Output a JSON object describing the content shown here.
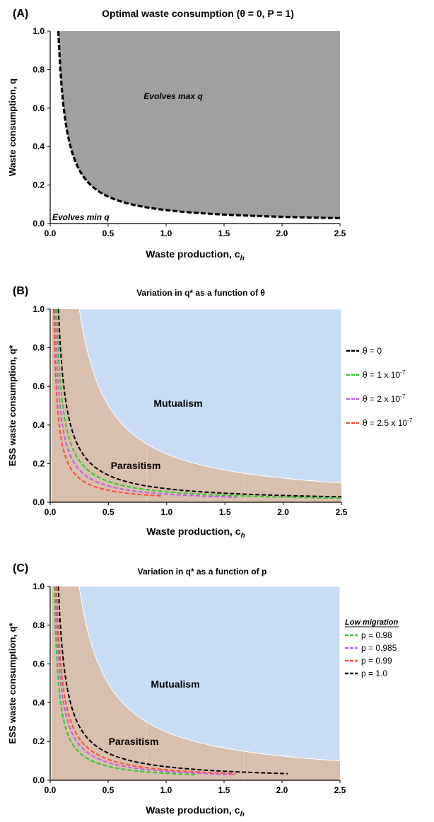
{
  "chart_data": [
    {
      "panel_label": "(A)",
      "type": "area",
      "title": "Optimal waste consumption (θ = 0, P = 1)",
      "xlabel": "Waste production, c",
      "xlabel_sub": "h",
      "ylabel": "Waste consumption, q",
      "xlim": [
        0,
        2.5
      ],
      "ylim": [
        0,
        1.0
      ],
      "xticks": [
        "0.0",
        "0.5",
        "1.0",
        "1.5",
        "2.0",
        "2.5"
      ],
      "yticks": [
        "0.0",
        "0.2",
        "0.4",
        "0.6",
        "0.8",
        "1.0"
      ],
      "region_labels": [
        "Evolves max q",
        "Evolves min q"
      ],
      "colors": {
        "upper_region": "#a0a0a0",
        "lower_region": "#ffffff",
        "curve": "#000000"
      },
      "series": [
        {
          "name": "",
          "curve": "q = 0.07 / c",
          "x": [
            0.07,
            0.1,
            0.15,
            0.2,
            0.3,
            0.5,
            0.75,
            1.0,
            1.5,
            2.0,
            2.5
          ],
          "y": [
            1.0,
            0.7,
            0.47,
            0.35,
            0.23,
            0.14,
            0.093,
            0.07,
            0.047,
            0.035,
            0.028
          ]
        }
      ]
    },
    {
      "panel_label": "(B)",
      "type": "line",
      "title": "Variation in q* as a function of θ",
      "xlabel": "Waste production, c",
      "xlabel_sub": "h",
      "ylabel": "ESS waste consumption, q*",
      "xlim": [
        0,
        2.5
      ],
      "ylim": [
        0,
        1.0
      ],
      "xticks": [
        "0.0",
        "0.5",
        "1.0",
        "1.5",
        "2.0",
        "2.5"
      ],
      "yticks": [
        "0.0",
        "0.2",
        "0.4",
        "0.6",
        "0.8",
        "1.0"
      ],
      "region_labels": [
        "Mutualism",
        "Parasitism"
      ],
      "legend_title": "",
      "legend_placement": "right",
      "colors": {
        "mutualism": "#c8ddf5",
        "parasitism": "#d8bfae"
      },
      "boundary": {
        "curve": "q = 0.25 / c",
        "x": [
          0.25,
          0.5,
          1.0,
          1.5,
          2.0,
          2.5
        ],
        "y": [
          1.0,
          0.5,
          0.25,
          0.167,
          0.125,
          0.1
        ]
      },
      "series": [
        {
          "name": "θ = 0",
          "color": "#000000",
          "k": 0.07,
          "x_end": 2.5
        },
        {
          "name": "θ = 1 x 10",
          "exp": "-7",
          "color": "#2ec92e",
          "k": 0.054,
          "x_end": 2.5
        },
        {
          "name": "θ = 2 x 10",
          "exp": "-7",
          "color": "#bf5fe6",
          "k": 0.042,
          "x_end": 1.6
        },
        {
          "name": "θ =  2.5 x 10",
          "exp": "-7",
          "color": "#ff4a3a",
          "k": 0.031,
          "x_end": 0.95
        }
      ]
    },
    {
      "panel_label": "(C)",
      "type": "line",
      "title": "Variation in q* as a function of p",
      "xlabel": "Waste production, c",
      "xlabel_sub": "h",
      "ylabel": "ESS waste consumption, q*",
      "xlim": [
        0,
        2.5
      ],
      "ylim": [
        0,
        1.0
      ],
      "xticks": [
        "0.0",
        "0.5",
        "1.0",
        "1.5",
        "2.0",
        "2.5"
      ],
      "yticks": [
        "0.0",
        "0.2",
        "0.4",
        "0.6",
        "0.8",
        "1.0"
      ],
      "region_labels": [
        "Mutualism",
        "Parasitism"
      ],
      "legend_title": "Low migration",
      "legend_placement": "right",
      "colors": {
        "mutualism": "#c8ddf5",
        "parasitism": "#d8bfae"
      },
      "boundary": {
        "curve": "q = 0.25 / c",
        "x": [
          0.25,
          0.5,
          1.0,
          1.5,
          2.0,
          2.5
        ],
        "y": [
          1.0,
          0.5,
          0.25,
          0.167,
          0.125,
          0.1
        ]
      },
      "series": [
        {
          "name": "p = 0.98",
          "color": "#2ec92e",
          "k": 0.036,
          "x_end": 1.25
        },
        {
          "name": "p = 0.985",
          "color": "#bf5fe6",
          "k": 0.046,
          "x_end": 1.6
        },
        {
          "name": "p = 0.99",
          "color": "#ff4a3a",
          "k": 0.054,
          "x_end": 1.6
        },
        {
          "name": "p = 1.0",
          "color": "#000000",
          "k": 0.07,
          "x_end": 2.05
        }
      ]
    }
  ]
}
